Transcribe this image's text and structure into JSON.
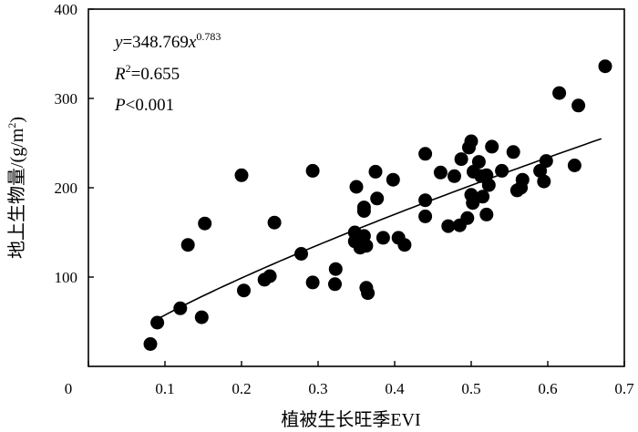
{
  "chart_data": {
    "type": "scatter",
    "xlabel": "植被生长旺季EVI",
    "ylabel_main": "地上生物量/(g/m",
    "ylabel_sup": "2",
    "ylabel_end": ")",
    "xlim": [
      0,
      0.7
    ],
    "ylim": [
      0,
      400
    ],
    "xticks": [
      0,
      0.1,
      0.2,
      0.3,
      0.4,
      0.5,
      0.6,
      0.7
    ],
    "yticks": [
      100,
      200,
      300,
      400
    ],
    "xtick_labels": [
      "0",
      "0.1",
      "0.2",
      "0.3",
      "0.4",
      "0.5",
      "0.6",
      "0.7"
    ],
    "ytick_labels": [
      "100",
      "200",
      "300",
      "400"
    ],
    "grid": false,
    "annotations": {
      "eq_y": "y",
      "eq_mid": "=348.769",
      "eq_x": "x",
      "eq_exp": "0.783",
      "r_R": "R",
      "r_sup": "2",
      "r_val": "=0.655",
      "p_P": "P",
      "p_val": "<0.001"
    },
    "fit": {
      "a": 348.769,
      "b": 0.783,
      "x_range": [
        0.09,
        0.67
      ]
    },
    "series": [
      {
        "points": [
          [
            0.081,
            25
          ],
          [
            0.09,
            49
          ],
          [
            0.12,
            65
          ],
          [
            0.13,
            136
          ],
          [
            0.148,
            55
          ],
          [
            0.152,
            160
          ],
          [
            0.2,
            214
          ],
          [
            0.203,
            85
          ],
          [
            0.23,
            97
          ],
          [
            0.237,
            101
          ],
          [
            0.243,
            161
          ],
          [
            0.278,
            126
          ],
          [
            0.293,
            219
          ],
          [
            0.293,
            94
          ],
          [
            0.322,
            92
          ],
          [
            0.323,
            109
          ],
          [
            0.348,
            150
          ],
          [
            0.348,
            140
          ],
          [
            0.35,
            201
          ],
          [
            0.355,
            133
          ],
          [
            0.36,
            178
          ],
          [
            0.36,
            174
          ],
          [
            0.36,
            146
          ],
          [
            0.363,
            135
          ],
          [
            0.363,
            88
          ],
          [
            0.365,
            82
          ],
          [
            0.375,
            218
          ],
          [
            0.377,
            188
          ],
          [
            0.385,
            144
          ],
          [
            0.398,
            209
          ],
          [
            0.405,
            144
          ],
          [
            0.413,
            136
          ],
          [
            0.44,
            238
          ],
          [
            0.44,
            186
          ],
          [
            0.44,
            168
          ],
          [
            0.46,
            217
          ],
          [
            0.47,
            157
          ],
          [
            0.478,
            213
          ],
          [
            0.485,
            158
          ],
          [
            0.487,
            232
          ],
          [
            0.495,
            166
          ],
          [
            0.497,
            245
          ],
          [
            0.5,
            252
          ],
          [
            0.5,
            192
          ],
          [
            0.502,
            183
          ],
          [
            0.503,
            218
          ],
          [
            0.51,
            229
          ],
          [
            0.513,
            213
          ],
          [
            0.515,
            190
          ],
          [
            0.52,
            170
          ],
          [
            0.52,
            214
          ],
          [
            0.523,
            203
          ],
          [
            0.527,
            246
          ],
          [
            0.54,
            219
          ],
          [
            0.555,
            240
          ],
          [
            0.56,
            197
          ],
          [
            0.567,
            209
          ],
          [
            0.565,
            200
          ],
          [
            0.59,
            219
          ],
          [
            0.595,
            207
          ],
          [
            0.598,
            230
          ],
          [
            0.615,
            306
          ],
          [
            0.635,
            225
          ],
          [
            0.64,
            292
          ],
          [
            0.675,
            336
          ]
        ]
      }
    ]
  }
}
